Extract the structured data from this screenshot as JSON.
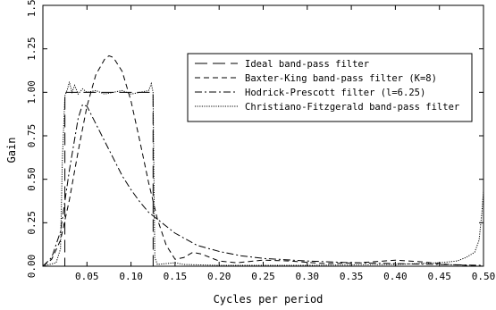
{
  "chart_data": {
    "type": "line",
    "title": "",
    "xlabel": "Cycles per period",
    "ylabel": "Gain",
    "xlim": [
      0,
      0.5
    ],
    "ylim": [
      0,
      1.5
    ],
    "xticks": [
      0.05,
      0.1,
      0.15,
      0.2,
      0.25,
      0.3,
      0.35,
      0.4,
      0.45,
      0.5
    ],
    "xtick_labels": [
      "0.05",
      "0.10",
      "0.15",
      "0.20",
      "0.25",
      "0.30",
      "0.35",
      "0.40",
      "0.45",
      "0.50"
    ],
    "yticks": [
      0,
      0.25,
      0.5,
      0.75,
      1.0,
      1.25,
      1.5
    ],
    "ytick_labels": [
      "0.00",
      "0.25",
      "0.50",
      "0.75",
      "1.00",
      "1.25",
      "1.50"
    ],
    "grid": false,
    "legend_position": "upper-right",
    "series": [
      {
        "name": "Ideal band-pass filter",
        "style": "longdash",
        "points": [
          [
            0.0,
            0.0
          ],
          [
            0.0249,
            0.0
          ],
          [
            0.025,
            1.0
          ],
          [
            0.125,
            1.0
          ],
          [
            0.1251,
            0.0
          ],
          [
            0.5,
            0.0
          ]
        ]
      },
      {
        "name": "Baxter-King band-pass filter (K=8)",
        "style": "dash",
        "points": [
          [
            0.0,
            0.0
          ],
          [
            0.01,
            0.04
          ],
          [
            0.02,
            0.15
          ],
          [
            0.03,
            0.38
          ],
          [
            0.04,
            0.66
          ],
          [
            0.05,
            0.92
          ],
          [
            0.06,
            1.1
          ],
          [
            0.07,
            1.19
          ],
          [
            0.075,
            1.21
          ],
          [
            0.08,
            1.2
          ],
          [
            0.09,
            1.12
          ],
          [
            0.1,
            0.95
          ],
          [
            0.11,
            0.72
          ],
          [
            0.12,
            0.48
          ],
          [
            0.13,
            0.27
          ],
          [
            0.14,
            0.12
          ],
          [
            0.15,
            0.04
          ],
          [
            0.16,
            0.05
          ],
          [
            0.17,
            0.08
          ],
          [
            0.18,
            0.07
          ],
          [
            0.2,
            0.03
          ],
          [
            0.22,
            0.02
          ],
          [
            0.25,
            0.035
          ],
          [
            0.28,
            0.03
          ],
          [
            0.32,
            0.015
          ],
          [
            0.36,
            0.02
          ],
          [
            0.4,
            0.035
          ],
          [
            0.43,
            0.025
          ],
          [
            0.46,
            0.01
          ],
          [
            0.48,
            0.005
          ],
          [
            0.5,
            0.0
          ]
        ]
      },
      {
        "name": "Hodrick-Prescott filter (l=6.25)",
        "style": "dashdot",
        "points": [
          [
            0.0,
            0.0
          ],
          [
            0.01,
            0.05
          ],
          [
            0.02,
            0.2
          ],
          [
            0.03,
            0.55
          ],
          [
            0.04,
            0.85
          ],
          [
            0.045,
            0.93
          ],
          [
            0.05,
            0.92
          ],
          [
            0.06,
            0.82
          ],
          [
            0.07,
            0.72
          ],
          [
            0.08,
            0.62
          ],
          [
            0.09,
            0.52
          ],
          [
            0.1,
            0.44
          ],
          [
            0.11,
            0.37
          ],
          [
            0.12,
            0.31
          ],
          [
            0.13,
            0.27
          ],
          [
            0.14,
            0.23
          ],
          [
            0.15,
            0.19
          ],
          [
            0.175,
            0.12
          ],
          [
            0.2,
            0.085
          ],
          [
            0.225,
            0.06
          ],
          [
            0.25,
            0.045
          ],
          [
            0.3,
            0.03
          ],
          [
            0.35,
            0.02
          ],
          [
            0.4,
            0.015
          ],
          [
            0.45,
            0.01
          ],
          [
            0.5,
            0.005
          ]
        ]
      },
      {
        "name": "Christiano-Fitzgerald band-pass filter",
        "style": "dotted",
        "points": [
          [
            0.0,
            0.0
          ],
          [
            0.015,
            0.02
          ],
          [
            0.02,
            0.1
          ],
          [
            0.022,
            0.6
          ],
          [
            0.025,
            0.98
          ],
          [
            0.028,
            1.02
          ],
          [
            0.03,
            1.06
          ],
          [
            0.033,
            1.0
          ],
          [
            0.036,
            1.04
          ],
          [
            0.04,
            0.99
          ],
          [
            0.045,
            1.02
          ],
          [
            0.05,
            1.0
          ],
          [
            0.06,
            1.01
          ],
          [
            0.07,
            0.99
          ],
          [
            0.08,
            1.0
          ],
          [
            0.09,
            1.01
          ],
          [
            0.1,
            0.99
          ],
          [
            0.11,
            1.0
          ],
          [
            0.12,
            1.01
          ],
          [
            0.123,
            1.05
          ],
          [
            0.125,
            1.0
          ],
          [
            0.126,
            0.5
          ],
          [
            0.127,
            0.05
          ],
          [
            0.13,
            0.01
          ],
          [
            0.15,
            0.02
          ],
          [
            0.16,
            0.01
          ],
          [
            0.2,
            0.005
          ],
          [
            0.3,
            0.005
          ],
          [
            0.4,
            0.01
          ],
          [
            0.45,
            0.02
          ],
          [
            0.47,
            0.03
          ],
          [
            0.48,
            0.05
          ],
          [
            0.49,
            0.08
          ],
          [
            0.495,
            0.15
          ],
          [
            0.498,
            0.3
          ],
          [
            0.5,
            0.43
          ]
        ]
      }
    ]
  }
}
